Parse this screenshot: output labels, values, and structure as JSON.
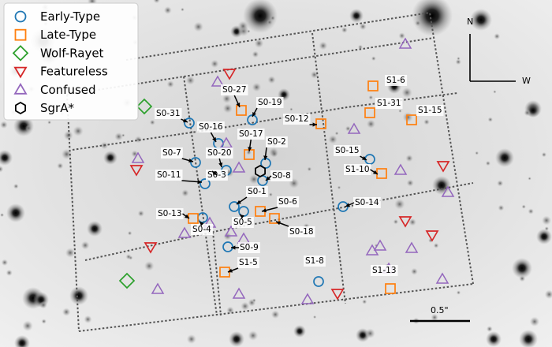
{
  "legend": {
    "items": [
      {
        "label": "Early-Type",
        "marker": "circle-icon",
        "color": "#1f77b4"
      },
      {
        "label": "Late-Type",
        "marker": "square-icon",
        "color": "#ff7f0e"
      },
      {
        "label": "Wolf-Rayet",
        "marker": "diamond-icon",
        "color": "#2ca02c"
      },
      {
        "label": "Featureless",
        "marker": "triangle-down-icon",
        "color": "#d62728"
      },
      {
        "label": "Confused",
        "marker": "triangle-up-icon",
        "color": "#9467bd"
      },
      {
        "label": "SgrA*",
        "marker": "hexagon-icon",
        "color": "#000000"
      }
    ]
  },
  "compass": {
    "north": "N",
    "west": "W"
  },
  "scalebar": {
    "label": "0.5\""
  },
  "stars": [
    {
      "name": "S0-31"
    },
    {
      "name": "S0-27"
    },
    {
      "name": "S0-19"
    },
    {
      "name": "S0-12"
    },
    {
      "name": "S0-16"
    },
    {
      "name": "S0-17"
    },
    {
      "name": "S0-2"
    },
    {
      "name": "S0-7"
    },
    {
      "name": "S0-20"
    },
    {
      "name": "S0-11"
    },
    {
      "name": "S0-3"
    },
    {
      "name": "S0-8"
    },
    {
      "name": "S0-1"
    },
    {
      "name": "S0-6"
    },
    {
      "name": "S0-13"
    },
    {
      "name": "S0-5"
    },
    {
      "name": "S0-4"
    },
    {
      "name": "S0-18"
    },
    {
      "name": "S0-9"
    },
    {
      "name": "S1-5"
    },
    {
      "name": "S1-8"
    },
    {
      "name": "S1-6"
    },
    {
      "name": "S1-31"
    },
    {
      "name": "S1-15"
    },
    {
      "name": "S0-15"
    },
    {
      "name": "S1-10"
    },
    {
      "name": "S0-14"
    },
    {
      "name": "S1-13"
    }
  ]
}
